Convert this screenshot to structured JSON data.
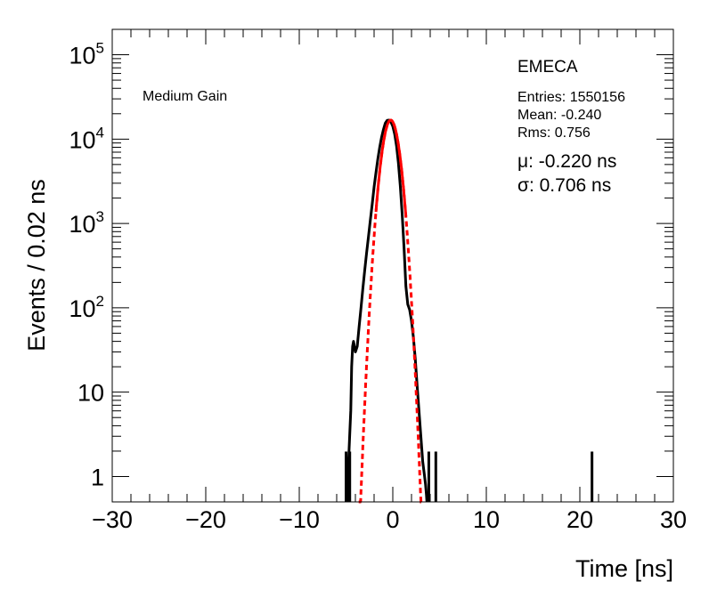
{
  "chart_data": {
    "type": "line",
    "xlabel": "Time [ns]",
    "ylabel": "Events / 0.02 ns",
    "xlim": [
      -30,
      30
    ],
    "ylim": [
      0.5,
      200000
    ],
    "yscale": "log",
    "x_ticks": [
      {
        "value": -30,
        "label": "−30"
      },
      {
        "value": -20,
        "label": "−20"
      },
      {
        "value": -10,
        "label": "−10"
      },
      {
        "value": 0,
        "label": "0"
      },
      {
        "value": 10,
        "label": "10"
      },
      {
        "value": 20,
        "label": "20"
      },
      {
        "value": 30,
        "label": "30"
      }
    ],
    "y_ticks": [
      {
        "value": 1,
        "base": "1",
        "exp": ""
      },
      {
        "value": 10,
        "base": "10",
        "exp": ""
      },
      {
        "value": 100,
        "base": "10",
        "exp": "2"
      },
      {
        "value": 1000,
        "base": "10",
        "exp": "3"
      },
      {
        "value": 10000,
        "base": "10",
        "exp": "4"
      },
      {
        "value": 100000,
        "base": "10",
        "exp": "5"
      }
    ],
    "annotations": {
      "gain": "Medium Gain",
      "detector": "EMECA",
      "entries": "Entries: 1550156",
      "mean": "Mean: -0.240",
      "rms": "Rms: 0.756",
      "fit_mu": "μ: -0.220 ns",
      "fit_sigma": "σ: 0.706 ns"
    },
    "series": [
      {
        "color": "#000000",
        "style": "histogram",
        "x": [
          -4.85,
          -4.8,
          -4.5,
          -4.4,
          -4.3,
          -4.2,
          -4.0,
          -3.8,
          -3.6,
          -3.4,
          -3.2,
          -3.0,
          -2.8,
          -2.6,
          -2.4,
          -2.2,
          -2.0,
          -1.8,
          -1.6,
          -1.4,
          -1.2,
          -1.0,
          -0.8,
          -0.6,
          -0.4,
          -0.2,
          0.0,
          0.2,
          0.4,
          0.6,
          0.8,
          1.0,
          1.2,
          1.4,
          1.6,
          1.8,
          2.0,
          2.2,
          2.4,
          2.6,
          2.8,
          3.0,
          3.2,
          3.4,
          3.5,
          3.6,
          3.65
        ],
        "y": [
          0.5,
          1,
          6,
          20,
          35,
          40,
          30,
          35,
          60,
          100,
          170,
          280,
          450,
          700,
          1100,
          1700,
          2700,
          4000,
          5800,
          8000,
          10500,
          13000,
          15500,
          16700,
          16800,
          15900,
          14200,
          11500,
          8300,
          5200,
          2800,
          1300,
          520,
          180,
          110,
          95,
          70,
          45,
          25,
          12,
          6,
          3,
          1.5,
          1,
          0.8,
          0.6,
          0.5
        ],
        "spikes": [
          {
            "x": -5.0,
            "y": 1
          },
          {
            "x": -4.6,
            "y": 1
          },
          {
            "x": 3.85,
            "y": 1
          },
          {
            "x": 4.6,
            "y": 1
          },
          {
            "x": 21.3,
            "y": 1
          }
        ]
      },
      {
        "color": "#ff0000",
        "style": "gaussian-fit",
        "amplitude": 16800,
        "mu": -0.22,
        "sigma": 0.706,
        "x_range": [
          -3.65,
          3.1
        ],
        "solid_range": [
          -1.8,
          1.4
        ]
      }
    ]
  }
}
